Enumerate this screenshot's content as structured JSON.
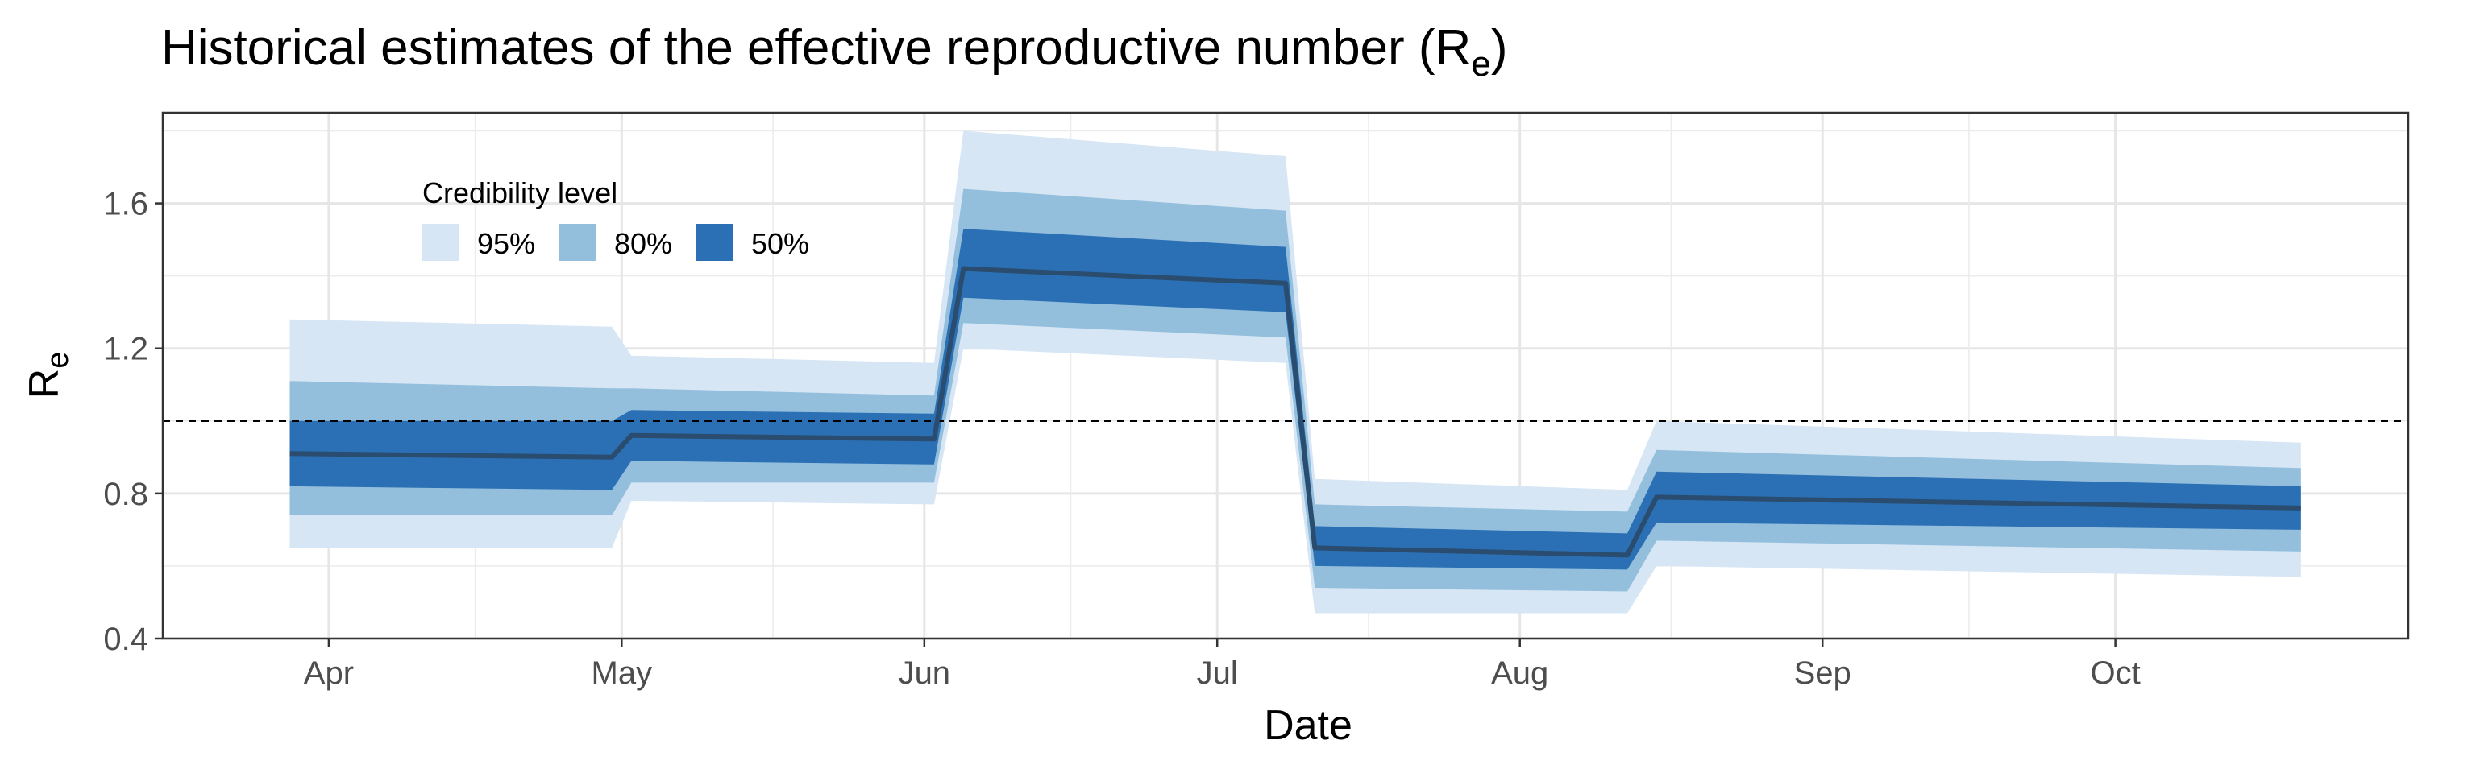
{
  "chart_data": {
    "type": "area",
    "title": "Historical estimates of the effective reproductive number (R",
    "title_subscript": "e",
    "title_suffix": ")",
    "xlabel": "Date",
    "ylabel": "R",
    "ylabel_subscript": "e",
    "x_range": [
      "2020-03-15",
      "2020-10-31"
    ],
    "ylim": [
      0.4,
      1.85
    ],
    "y_ticks": [
      0.4,
      0.8,
      1.2,
      1.6
    ],
    "y_tick_labels": [
      "0.4",
      "0.8",
      "1.2",
      "1.6"
    ],
    "x_ticks": [
      {
        "date": "2020-04-01",
        "label": "Apr"
      },
      {
        "date": "2020-05-01",
        "label": "May"
      },
      {
        "date": "2020-06-01",
        "label": "Jun"
      },
      {
        "date": "2020-07-01",
        "label": "Jul"
      },
      {
        "date": "2020-08-01",
        "label": "Aug"
      },
      {
        "date": "2020-09-01",
        "label": "Sep"
      },
      {
        "date": "2020-10-01",
        "label": "Oct"
      }
    ],
    "reference_line": 1.0,
    "grid": true,
    "legend": {
      "title": "Credibility level",
      "placement": "top-left",
      "entries": [
        {
          "label": "95%",
          "color": "#d6e6f5"
        },
        {
          "label": "80%",
          "color": "#93bfdd"
        },
        {
          "label": "50%",
          "color": "#2b70b4"
        }
      ]
    },
    "colors": {
      "median": "#2a4c6e",
      "reference_line": "#000000"
    },
    "series": {
      "x": [
        "2020-03-28",
        "2020-04-30",
        "2020-05-02",
        "2020-06-02",
        "2020-06-05",
        "2020-07-08",
        "2020-07-11",
        "2020-08-12",
        "2020-08-15",
        "2020-10-20"
      ],
      "median": [
        0.91,
        0.9,
        0.96,
        0.95,
        1.42,
        1.38,
        0.65,
        0.63,
        0.79,
        0.76
      ],
      "lower_50": [
        0.82,
        0.81,
        0.89,
        0.88,
        1.34,
        1.3,
        0.6,
        0.59,
        0.72,
        0.7
      ],
      "upper_50": [
        1.0,
        1.0,
        1.03,
        1.02,
        1.53,
        1.48,
        0.71,
        0.69,
        0.86,
        0.82
      ],
      "lower_80": [
        0.74,
        0.74,
        0.83,
        0.83,
        1.27,
        1.23,
        0.54,
        0.53,
        0.67,
        0.64
      ],
      "upper_80": [
        1.11,
        1.09,
        1.09,
        1.07,
        1.64,
        1.58,
        0.77,
        0.75,
        0.92,
        0.87
      ],
      "lower_95": [
        0.65,
        0.65,
        0.78,
        0.77,
        1.2,
        1.16,
        0.47,
        0.47,
        0.6,
        0.57
      ],
      "upper_95": [
        1.28,
        1.26,
        1.18,
        1.16,
        1.8,
        1.73,
        0.84,
        0.81,
        1.0,
        0.94
      ]
    }
  }
}
